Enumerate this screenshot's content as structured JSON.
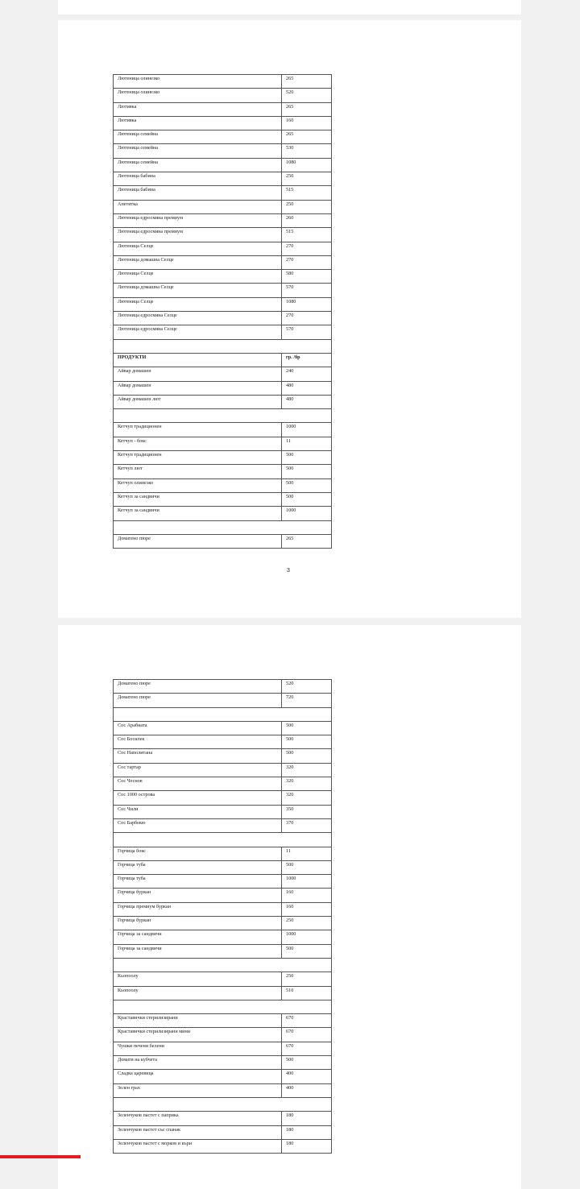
{
  "pages": [
    {
      "page_number": "3",
      "rows": [
        [
          "Лютеница олинезко",
          "265"
        ],
        [
          "Лютеница олинезко",
          "520"
        ],
        [
          "Лютивка",
          "265"
        ],
        [
          "Лютивка",
          "160"
        ],
        [
          "Лютеница семейна",
          "265"
        ],
        [
          "Лютеница семейна",
          "530"
        ],
        [
          "Лютеница семейна",
          "1080"
        ],
        [
          "Лютеница бабина",
          "250"
        ],
        [
          "Лютеница бабина",
          "515"
        ],
        [
          "Апетитка",
          "250"
        ],
        [
          "Лютеница едросмяна  премиум",
          "260"
        ],
        [
          "Лютеница едросмяна  премиум",
          "515"
        ],
        [
          "Лютеница  Селце",
          "270"
        ],
        [
          "Лютеница домашна Селце",
          "270"
        ],
        [
          "Лютеница Селце",
          "580"
        ],
        [
          "Лютеница домашна Селце",
          "570"
        ],
        [
          "Лютеница Селце",
          "1080"
        ],
        [
          "Лютеница едросмяна Селце",
          "270"
        ],
        [
          "Лютеница едросмяна Селце",
          "570"
        ],
        null,
        [
          "ПРОДУКТИ",
          "гр. /бр",
          "header"
        ],
        [
          "Айвар домашен",
          "240"
        ],
        [
          "Айвар домашен",
          "480"
        ],
        [
          "Айвар домашен  лют",
          "480"
        ],
        null,
        [
          "Кетчуп традиционен",
          "1000"
        ],
        [
          "Кетчуп - бокс",
          "11"
        ],
        [
          "Кетчуп традиционен",
          "500"
        ],
        [
          "Кетчуп лют",
          "500"
        ],
        [
          "Кетчуп олинезко",
          "500"
        ],
        [
          "Кетчуп за сандвичи",
          "500"
        ],
        [
          "Кетчуп за  сандвичи",
          "1000"
        ],
        null,
        [
          "Доматено пюре",
          "265"
        ]
      ]
    },
    {
      "rows": [
        [
          "Доматено пюре",
          "520"
        ],
        [
          "Доматено пюре",
          "720"
        ],
        null,
        [
          "Сос Арабиата",
          "500"
        ],
        [
          "Сос Босилек",
          "500"
        ],
        [
          "Сос Наполитана",
          "500"
        ],
        [
          "Сос тартар",
          "320"
        ],
        [
          "Сос Чеснов",
          "320"
        ],
        [
          "Сос 1000 острова",
          "320"
        ],
        [
          "Сос Чили",
          "350"
        ],
        [
          "Сос  Барбекю",
          "370"
        ],
        null,
        [
          "Горчица бокс",
          "11"
        ],
        [
          "Горчица туба",
          "500"
        ],
        [
          "Горчица туба",
          "1000"
        ],
        [
          "Горчица буркан",
          "160"
        ],
        [
          "Горчица премиум буркан",
          "160"
        ],
        [
          "Горчица буркан",
          "250"
        ],
        [
          "Горчица за сандвичи",
          "1000"
        ],
        [
          "Горчица за сандвичи",
          "500"
        ],
        null,
        [
          "Кьопоолу",
          "250"
        ],
        [
          "Кьопоолу",
          "510"
        ],
        null,
        [
          "Краставички стерилизирани",
          "670"
        ],
        [
          "Краставички стерилизирани мини",
          "670"
        ],
        [
          "Чушки печени белени",
          "670"
        ],
        [
          "Домати на кубчета",
          "500"
        ],
        [
          "Сладка царевица",
          "400"
        ],
        [
          "Зелен грах",
          "400"
        ],
        null,
        [
          "Зеленчуков пастет с паприка",
          "180"
        ],
        [
          "Зеленчуков пастет със спанак",
          "180"
        ],
        [
          "Зеленчуков пастет с морков и къри",
          "180"
        ]
      ]
    }
  ],
  "colors": {
    "background": "#f1f1f1",
    "page": "#ffffff",
    "accent_bar": "#e31b23"
  }
}
